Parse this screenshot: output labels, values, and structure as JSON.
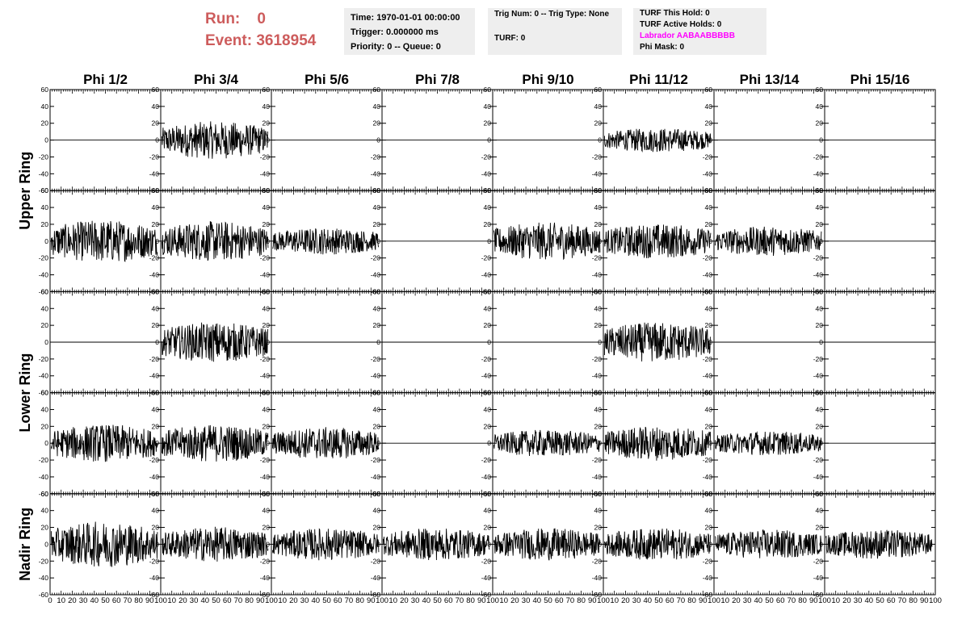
{
  "header": {
    "run_label": "Run:",
    "run_value": "0",
    "event_label": "Event:",
    "event_value": "3618954"
  },
  "time_box": {
    "time": "Time: 1970-01-01 00:00:00",
    "trigger": "Trigger: 0.000000 ms",
    "priority": "Priority: 0 -- Queue: 0"
  },
  "trig_box": {
    "trig": "Trig Num: 0 -- Trig Type: None",
    "turf": "TURF: 0"
  },
  "turf_box": {
    "this_hold": "TURF This Hold: 0",
    "active_holds": "TURF Active Holds: 0",
    "labrador": "Labrador AABAABBBBB",
    "phi_mask": "Phi Mask: 0"
  },
  "colors": {
    "run_info": "#cd5c5c",
    "labrador": "#ff00ff",
    "trace": "#000000",
    "panel_bg": "#eeeeee"
  },
  "chart_data": {
    "type": "line",
    "column_titles": [
      "Phi 1/2",
      "Phi 3/4",
      "Phi 5/6",
      "Phi 7/8",
      "Phi 9/10",
      "Phi 11/12",
      "Phi 13/14",
      "Phi 15/16"
    ],
    "row_titles": [
      "Upper Ring",
      "Lower Ring",
      "Nadir Ring"
    ],
    "xlim": [
      0,
      100
    ],
    "ylim": [
      -60,
      60
    ],
    "y_ticks": [
      60,
      40,
      20,
      0,
      -20,
      -40,
      -60
    ],
    "x_ticks": [
      0,
      10,
      20,
      30,
      40,
      50,
      60,
      70,
      80,
      90,
      100
    ],
    "rows": 5,
    "columns": 8,
    "approx_trace_amplitude": [
      [
        0,
        14,
        0,
        0,
        0,
        9,
        0,
        0
      ],
      [
        16,
        15,
        10,
        0,
        14,
        13,
        11,
        0
      ],
      [
        0,
        15,
        0,
        0,
        0,
        15,
        0,
        0
      ],
      [
        14,
        14,
        12,
        0,
        10,
        13,
        9,
        0
      ],
      [
        17,
        13,
        12,
        12,
        12,
        12,
        11,
        11
      ]
    ]
  }
}
